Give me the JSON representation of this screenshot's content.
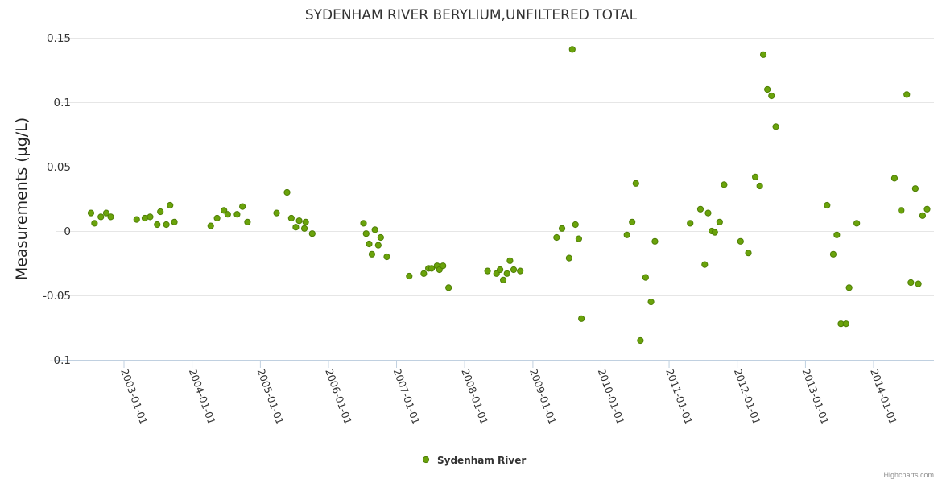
{
  "chart_data": {
    "type": "scatter",
    "title": "SYDENHAM RIVER BERYLIUM,UNFILTERED TOTAL",
    "ylabel": "Measurements (µg/L)",
    "xlabel": "",
    "ylim": [
      -0.1,
      0.15
    ],
    "y_ticks": [
      "0.15",
      "0.1",
      "0.05",
      "0",
      "-0.05",
      "-0.1"
    ],
    "x_ticks": [
      "2003-01-01",
      "2004-01-01",
      "2005-01-01",
      "2006-01-01",
      "2007-01-01",
      "2008-01-01",
      "2009-01-01",
      "2010-01-01",
      "2011-01-01",
      "2012-01-01",
      "2013-01-01",
      "2014-01-01"
    ],
    "grid": true,
    "legend_position": "bottom-center",
    "series": [
      {
        "name": "Sydenham River",
        "color": "#6aa30b",
        "points": [
          [
            "2002-07-08",
            0.014
          ],
          [
            "2002-07-27",
            0.006
          ],
          [
            "2002-08-30",
            0.011
          ],
          [
            "2002-09-28",
            0.014
          ],
          [
            "2002-10-22",
            0.011
          ],
          [
            "2003-03-10",
            0.009
          ],
          [
            "2003-04-23",
            0.01
          ],
          [
            "2003-05-21",
            0.011
          ],
          [
            "2003-06-28",
            0.005
          ],
          [
            "2003-07-15",
            0.015
          ],
          [
            "2003-08-16",
            0.005
          ],
          [
            "2003-09-05",
            0.02
          ],
          [
            "2003-09-28",
            0.007
          ],
          [
            "2004-04-10",
            0.004
          ],
          [
            "2004-05-14",
            0.01
          ],
          [
            "2004-06-20",
            0.016
          ],
          [
            "2004-07-10",
            0.013
          ],
          [
            "2004-08-29",
            0.013
          ],
          [
            "2004-09-27",
            0.019
          ],
          [
            "2004-10-24",
            0.007
          ],
          [
            "2005-03-29",
            0.014
          ],
          [
            "2005-05-24",
            0.03
          ],
          [
            "2005-06-16",
            0.01
          ],
          [
            "2005-07-10",
            0.003
          ],
          [
            "2005-07-28",
            0.008
          ],
          [
            "2005-08-25",
            0.002
          ],
          [
            "2005-09-01",
            0.007
          ],
          [
            "2005-10-06",
            -0.002
          ],
          [
            "2006-07-08",
            0.006
          ],
          [
            "2006-07-22",
            -0.002
          ],
          [
            "2006-08-07",
            -0.01
          ],
          [
            "2006-08-22",
            -0.018
          ],
          [
            "2006-09-07",
            0.001
          ],
          [
            "2006-09-25",
            -0.011
          ],
          [
            "2006-10-08",
            -0.005
          ],
          [
            "2006-11-10",
            -0.02
          ],
          [
            "2007-03-10",
            -0.035
          ],
          [
            "2007-05-27",
            -0.033
          ],
          [
            "2007-06-21",
            -0.029
          ],
          [
            "2007-07-08",
            -0.029
          ],
          [
            "2007-08-06",
            -0.027
          ],
          [
            "2007-08-19",
            -0.03
          ],
          [
            "2007-09-07",
            -0.027
          ],
          [
            "2007-10-07",
            -0.044
          ],
          [
            "2008-05-03",
            -0.031
          ],
          [
            "2008-06-20",
            -0.033
          ],
          [
            "2008-07-09",
            -0.03
          ],
          [
            "2008-07-26",
            -0.038
          ],
          [
            "2008-08-15",
            -0.033
          ],
          [
            "2008-08-31",
            -0.023
          ],
          [
            "2008-09-20",
            -0.03
          ],
          [
            "2008-10-25",
            -0.031
          ],
          [
            "2009-05-08",
            -0.005
          ],
          [
            "2009-06-06",
            0.002
          ],
          [
            "2009-07-14",
            -0.021
          ],
          [
            "2009-07-31",
            0.141
          ],
          [
            "2009-08-17",
            0.005
          ],
          [
            "2009-09-04",
            -0.006
          ],
          [
            "2009-09-18",
            -0.068
          ],
          [
            "2010-05-20",
            -0.003
          ],
          [
            "2010-06-17",
            0.007
          ],
          [
            "2010-07-07",
            0.037
          ],
          [
            "2010-07-31",
            -0.085
          ],
          [
            "2010-08-28",
            -0.036
          ],
          [
            "2010-09-26",
            -0.055
          ],
          [
            "2010-10-17",
            -0.008
          ],
          [
            "2011-04-24",
            0.006
          ],
          [
            "2011-06-18",
            0.017
          ],
          [
            "2011-07-11",
            -0.026
          ],
          [
            "2011-07-29",
            0.014
          ],
          [
            "2011-08-18",
            0.0
          ],
          [
            "2011-09-03",
            -0.001
          ],
          [
            "2011-09-29",
            0.007
          ],
          [
            "2011-10-23",
            0.036
          ],
          [
            "2012-01-19",
            -0.008
          ],
          [
            "2012-03-01",
            -0.017
          ],
          [
            "2012-04-07",
            0.042
          ],
          [
            "2012-05-01",
            0.035
          ],
          [
            "2012-05-20",
            0.137
          ],
          [
            "2012-06-11",
            0.11
          ],
          [
            "2012-07-03",
            0.105
          ],
          [
            "2012-07-26",
            0.081
          ],
          [
            "2013-04-27",
            0.02
          ],
          [
            "2013-05-30",
            -0.018
          ],
          [
            "2013-06-18",
            -0.003
          ],
          [
            "2013-07-10",
            -0.072
          ],
          [
            "2013-08-06",
            -0.072
          ],
          [
            "2013-08-23",
            -0.044
          ],
          [
            "2013-10-03",
            0.006
          ],
          [
            "2014-04-23",
            0.041
          ],
          [
            "2014-05-29",
            0.016
          ],
          [
            "2014-06-28",
            0.106
          ],
          [
            "2014-07-20",
            -0.04
          ],
          [
            "2014-08-13",
            0.033
          ],
          [
            "2014-08-29",
            -0.041
          ],
          [
            "2014-09-21",
            0.012
          ],
          [
            "2014-10-15",
            0.017
          ]
        ]
      }
    ]
  },
  "credits": "Highcharts.com"
}
